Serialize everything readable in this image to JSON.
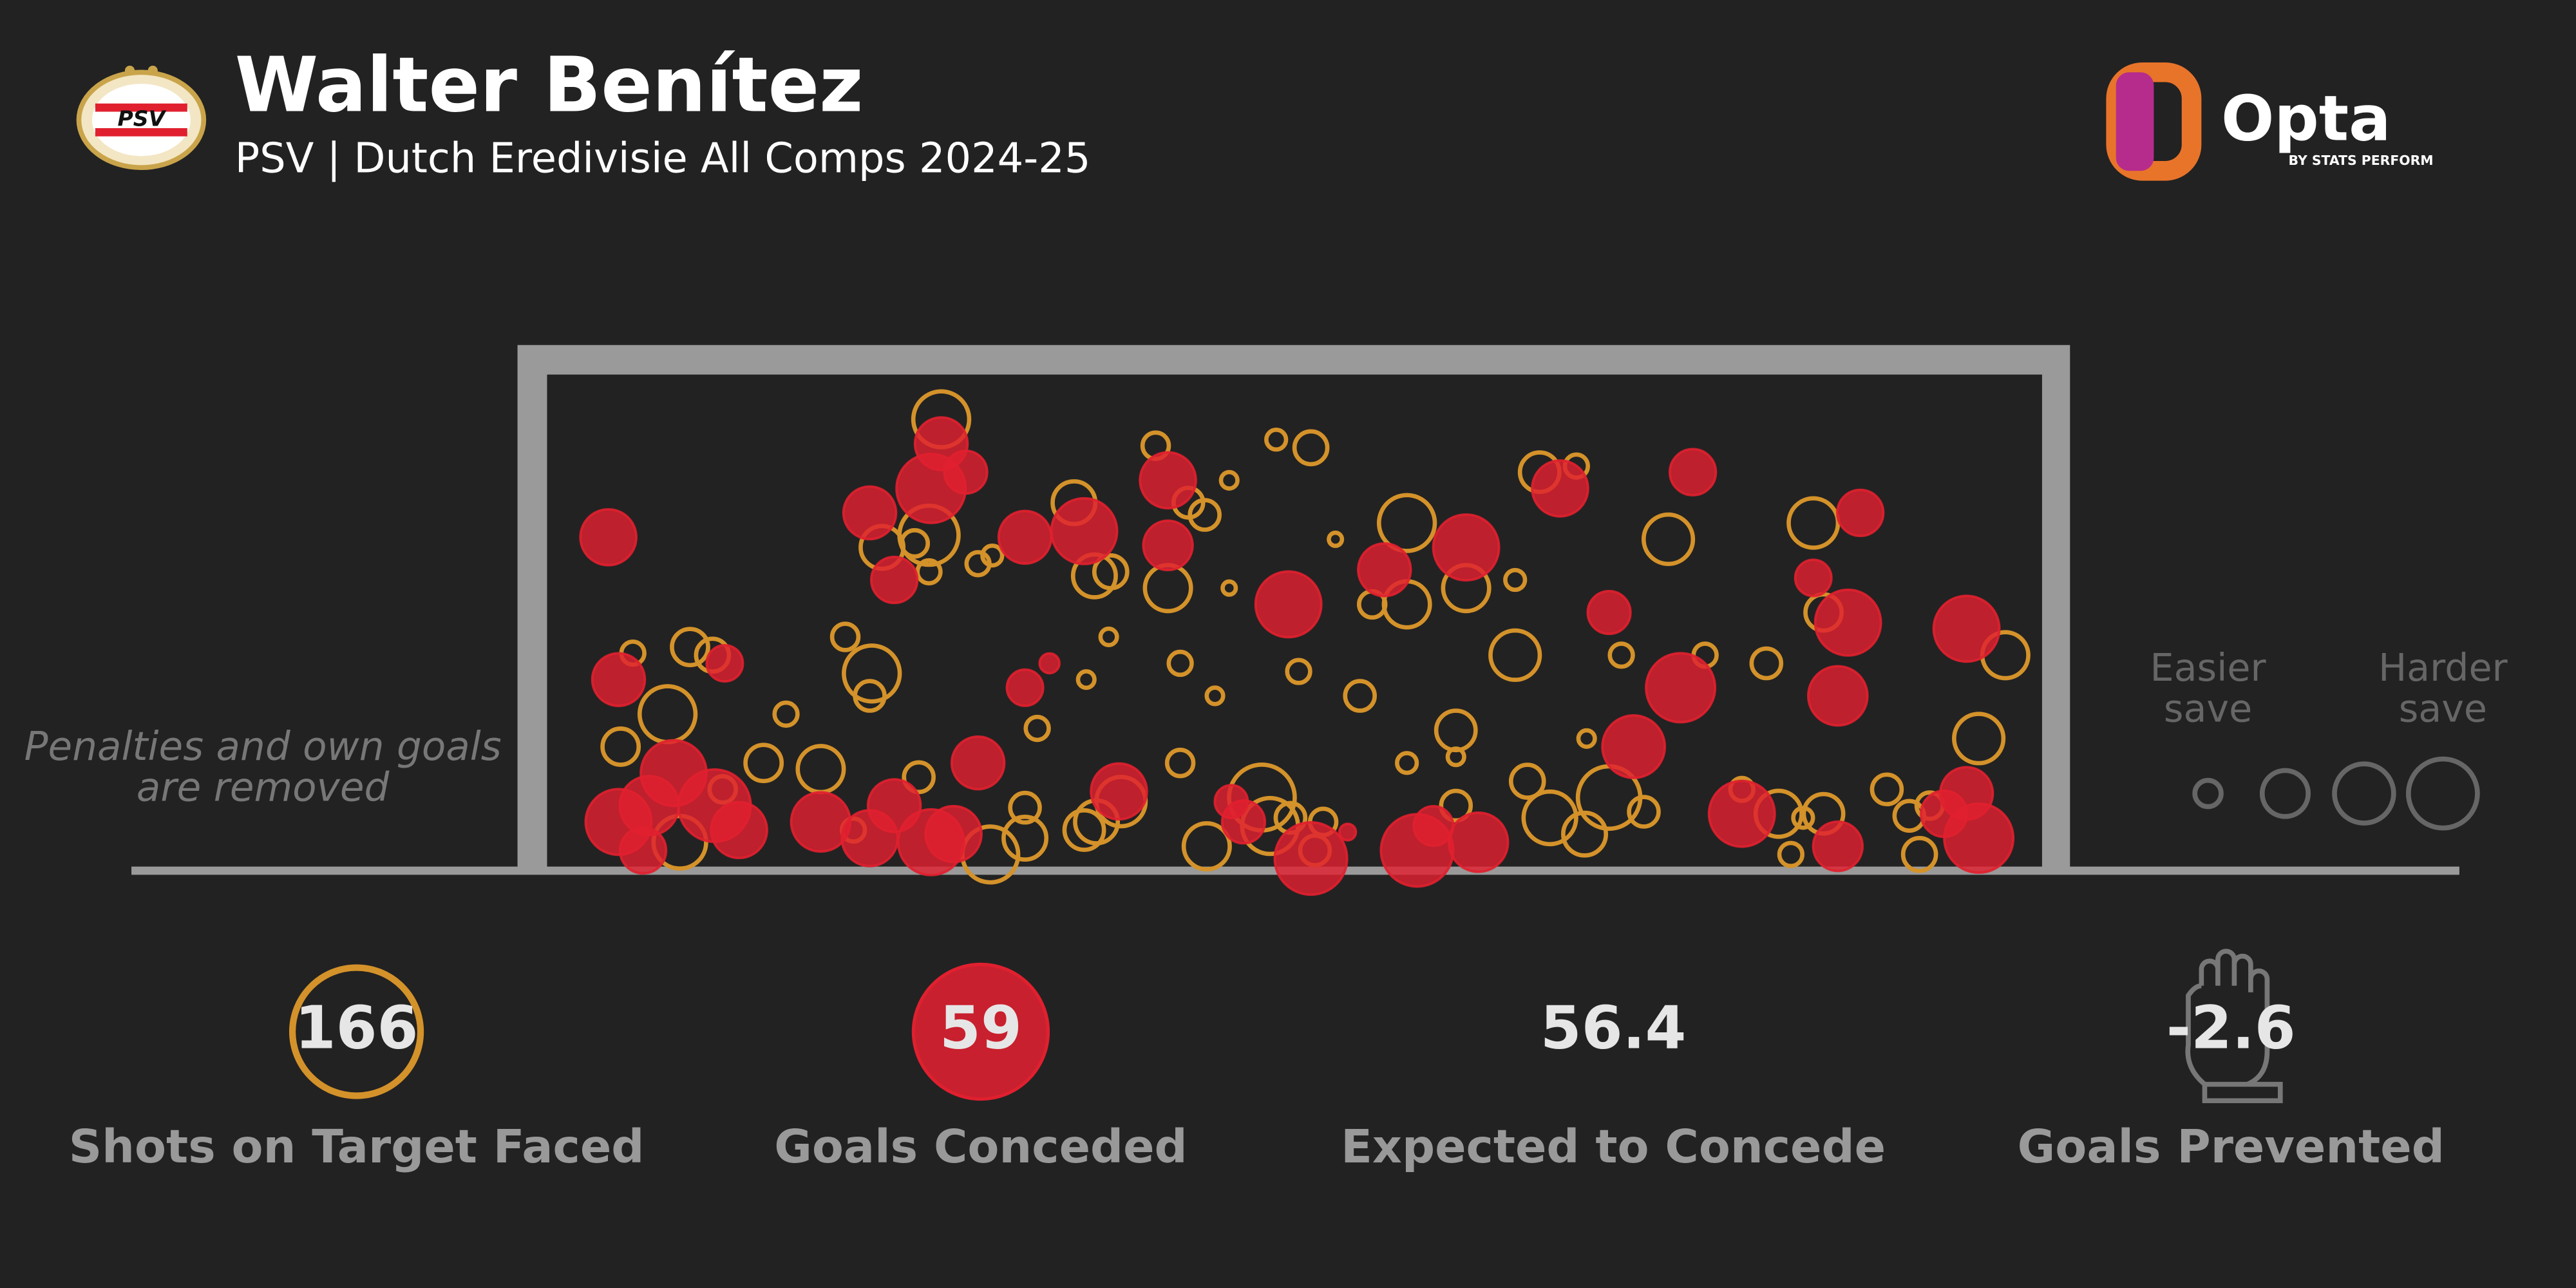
{
  "header": {
    "title": "Walter Benítez",
    "subtitle": "PSV | Dutch Eredivisie All Comps 2024-25",
    "badge": "PSV",
    "brand": "Opta",
    "brand_sub": "BY STATS PERFORM"
  },
  "chart_data": {
    "type": "scatter",
    "xlim": [
      0,
      7.32
    ],
    "ylim": [
      0,
      2.44
    ],
    "note": [
      "Penalties and own goals",
      "are removed"
    ],
    "legend": {
      "easier": [
        "Easier",
        "save"
      ],
      "harder": [
        "Harder",
        "save"
      ]
    },
    "series": [
      {
        "color": "#d4922a",
        "filled": false,
        "points": [
          [
            1.93,
            2.22,
            17
          ],
          [
            1.87,
            1.65,
            18
          ],
          [
            1.64,
            1.59,
            13
          ],
          [
            1.8,
            1.61,
            8
          ],
          [
            1.87,
            1.47,
            7
          ],
          [
            2.11,
            1.51,
            7
          ],
          [
            2.18,
            1.55,
            6
          ],
          [
            2.58,
            1.81,
            13
          ],
          [
            2.68,
            1.45,
            13
          ],
          [
            2.76,
            1.47,
            10
          ],
          [
            2.98,
            2.09,
            8
          ],
          [
            3.14,
            1.81,
            9
          ],
          [
            3.22,
            1.75,
            9
          ],
          [
            3.34,
            1.92,
            5
          ],
          [
            3.04,
            1.39,
            14
          ],
          [
            3.34,
            1.39,
            4
          ],
          [
            3.57,
            2.12,
            6
          ],
          [
            3.74,
            2.08,
            10
          ],
          [
            3.86,
            1.63,
            4
          ],
          [
            4.21,
            1.71,
            17
          ],
          [
            4.21,
            1.31,
            14
          ],
          [
            4.04,
            1.31,
            8
          ],
          [
            4.5,
            1.39,
            14
          ],
          [
            4.74,
            1.43,
            6
          ],
          [
            4.86,
            1.96,
            12
          ],
          [
            5.04,
            1.99,
            7
          ],
          [
            5.49,
            1.63,
            15
          ],
          [
            6.2,
            1.71,
            15
          ],
          [
            6.25,
            1.27,
            11
          ],
          [
            4.74,
            1.06,
            15
          ],
          [
            5.26,
            1.06,
            7
          ],
          [
            5.67,
            1.06,
            7
          ],
          [
            5.97,
            1.02,
            9
          ],
          [
            7.14,
            1.06,
            14
          ],
          [
            7.01,
            0.65,
            15
          ],
          [
            0.42,
            1.07,
            7
          ],
          [
            0.7,
            1.1,
            11
          ],
          [
            0.81,
            1.06,
            10
          ],
          [
            0.59,
            0.77,
            17
          ],
          [
            1.46,
            1.15,
            8
          ],
          [
            1.59,
            0.97,
            17
          ],
          [
            1.58,
            0.86,
            9
          ],
          [
            1.17,
            0.77,
            7
          ],
          [
            0.36,
            0.61,
            11
          ],
          [
            1.06,
            0.53,
            11
          ],
          [
            1.34,
            0.5,
            14
          ],
          [
            0.86,
            0.4,
            8
          ],
          [
            0.65,
            0.14,
            16
          ],
          [
            1.82,
            0.46,
            9
          ],
          [
            2.34,
            0.31,
            9
          ],
          [
            2.34,
            0.16,
            13
          ],
          [
            2.63,
            0.2,
            12
          ],
          [
            2.69,
            0.24,
            13
          ],
          [
            2.81,
            0.34,
            15
          ],
          [
            2.17,
            0.08,
            17
          ],
          [
            1.5,
            0.2,
            7
          ],
          [
            2.4,
            0.7,
            7
          ],
          [
            2.64,
            0.94,
            5
          ],
          [
            2.75,
            1.15,
            5
          ],
          [
            3.1,
            1.02,
            7
          ],
          [
            3.27,
            0.86,
            5
          ],
          [
            3.68,
            0.98,
            7
          ],
          [
            3.98,
            0.86,
            9
          ],
          [
            3.1,
            0.53,
            8
          ],
          [
            3.5,
            0.36,
            20
          ],
          [
            3.54,
            0.22,
            17
          ],
          [
            3.23,
            0.12,
            14
          ],
          [
            3.64,
            0.26,
            9
          ],
          [
            3.8,
            0.24,
            8
          ],
          [
            3.76,
            0.1,
            9
          ],
          [
            4.45,
            0.69,
            12
          ],
          [
            4.45,
            0.56,
            5
          ],
          [
            4.21,
            0.53,
            6
          ],
          [
            4.45,
            0.32,
            9
          ],
          [
            4.8,
            0.44,
            10
          ],
          [
            4.91,
            0.26,
            16
          ],
          [
            5.08,
            0.18,
            13
          ],
          [
            5.2,
            0.36,
            19
          ],
          [
            5.37,
            0.29,
            9
          ],
          [
            5.09,
            0.65,
            5
          ],
          [
            5.85,
            0.4,
            7
          ],
          [
            6.03,
            0.28,
            14
          ],
          [
            6.25,
            0.28,
            12
          ],
          [
            6.09,
            0.08,
            7
          ],
          [
            6.56,
            0.4,
            9
          ],
          [
            6.67,
            0.27,
            9
          ],
          [
            6.72,
            0.08,
            10
          ],
          [
            6.77,
            0.32,
            8
          ],
          [
            6.15,
            0.26,
            6
          ]
        ]
      },
      {
        "color": "#e0202f",
        "filled": true,
        "points": [
          [
            0.3,
            1.64,
            17
          ],
          [
            1.93,
            2.1,
            16
          ],
          [
            1.88,
            1.88,
            21
          ],
          [
            2.05,
            1.96,
            13
          ],
          [
            1.58,
            1.76,
            16
          ],
          [
            1.7,
            1.43,
            14
          ],
          [
            2.34,
            1.64,
            16
          ],
          [
            2.63,
            1.67,
            20
          ],
          [
            3.04,
            1.92,
            17
          ],
          [
            3.04,
            1.6,
            15
          ],
          [
            3.63,
            1.31,
            20
          ],
          [
            4.1,
            1.48,
            16
          ],
          [
            4.5,
            1.59,
            20
          ],
          [
            4.96,
            1.88,
            17
          ],
          [
            5.61,
            1.96,
            14
          ],
          [
            5.2,
            1.27,
            13
          ],
          [
            5.55,
            0.9,
            21
          ],
          [
            5.32,
            0.61,
            19
          ],
          [
            6.43,
            1.76,
            14
          ],
          [
            6.2,
            1.44,
            11
          ],
          [
            6.37,
            1.22,
            20
          ],
          [
            6.32,
            0.86,
            18
          ],
          [
            6.95,
            1.19,
            20
          ],
          [
            0.35,
            0.94,
            16
          ],
          [
            0.87,
            1.02,
            11
          ],
          [
            2.34,
            0.9,
            11
          ],
          [
            2.46,
            1.02,
            6
          ],
          [
            2.11,
            0.53,
            16
          ],
          [
            0.62,
            0.48,
            20
          ],
          [
            0.5,
            0.32,
            18
          ],
          [
            0.35,
            0.24,
            20
          ],
          [
            0.47,
            0.1,
            14
          ],
          [
            0.82,
            0.32,
            22
          ],
          [
            0.94,
            0.2,
            17
          ],
          [
            1.34,
            0.24,
            18
          ],
          [
            1.58,
            0.16,
            17
          ],
          [
            1.7,
            0.32,
            16
          ],
          [
            1.88,
            0.14,
            20
          ],
          [
            1.99,
            0.18,
            17
          ],
          [
            2.8,
            0.39,
            17
          ],
          [
            3.41,
            0.24,
            13
          ],
          [
            3.74,
            0.06,
            22
          ],
          [
            4.26,
            0.1,
            22
          ],
          [
            4.56,
            0.14,
            18
          ],
          [
            4.34,
            0.22,
            12
          ],
          [
            3.92,
            0.19,
            5
          ],
          [
            5.85,
            0.28,
            20
          ],
          [
            6.32,
            0.12,
            15
          ],
          [
            6.95,
            0.38,
            16
          ],
          [
            7.01,
            0.16,
            21
          ],
          [
            6.84,
            0.28,
            14
          ],
          [
            3.35,
            0.34,
            10
          ]
        ]
      }
    ]
  },
  "stats": [
    {
      "value": 166,
      "label": "Shots on Target Faced"
    },
    {
      "value": 59,
      "label": "Goals Conceded"
    },
    {
      "value": 56.4,
      "label": "Expected to Concede"
    },
    {
      "value": -2.6,
      "label": "Goals Prevented"
    }
  ]
}
